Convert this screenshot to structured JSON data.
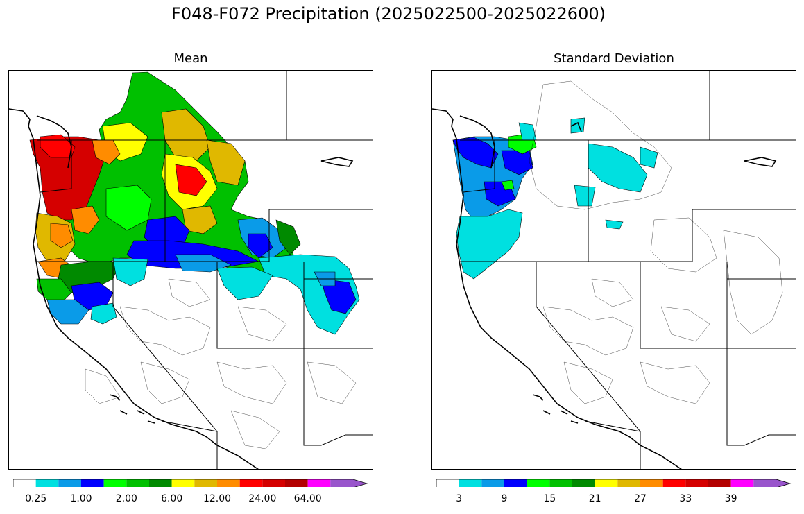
{
  "figure": {
    "title": "F048-F072 Precipitation (2025022500-2025022600)"
  },
  "panels": [
    {
      "id": "mean",
      "subtitle": "Mean",
      "colorbar": {
        "colors": [
          "#ffffff",
          "#00e0e0",
          "#0a9be8",
          "#0000ff",
          "#00ff00",
          "#00c000",
          "#008a00",
          "#ffff00",
          "#e0b800",
          "#ff8c00",
          "#ff0000",
          "#d50000",
          "#b30000",
          "#ff00ff",
          "#9955cc"
        ],
        "tick_labels": [
          "0.25",
          "1.00",
          "2.00",
          "6.00",
          "12.00",
          "24.00",
          "64.00"
        ],
        "extend": "max"
      }
    },
    {
      "id": "std",
      "subtitle": "Standard Deviation",
      "colorbar": {
        "colors": [
          "#ffffff",
          "#00e0e0",
          "#0a9be8",
          "#0000ff",
          "#00ff00",
          "#00c000",
          "#008a00",
          "#ffff00",
          "#e0b800",
          "#ff8c00",
          "#ff0000",
          "#d50000",
          "#b30000",
          "#ff00ff",
          "#9955cc"
        ],
        "tick_labels": [
          "3",
          "9",
          "15",
          "21",
          "27",
          "33",
          "39"
        ],
        "extend": "max"
      }
    }
  ]
}
